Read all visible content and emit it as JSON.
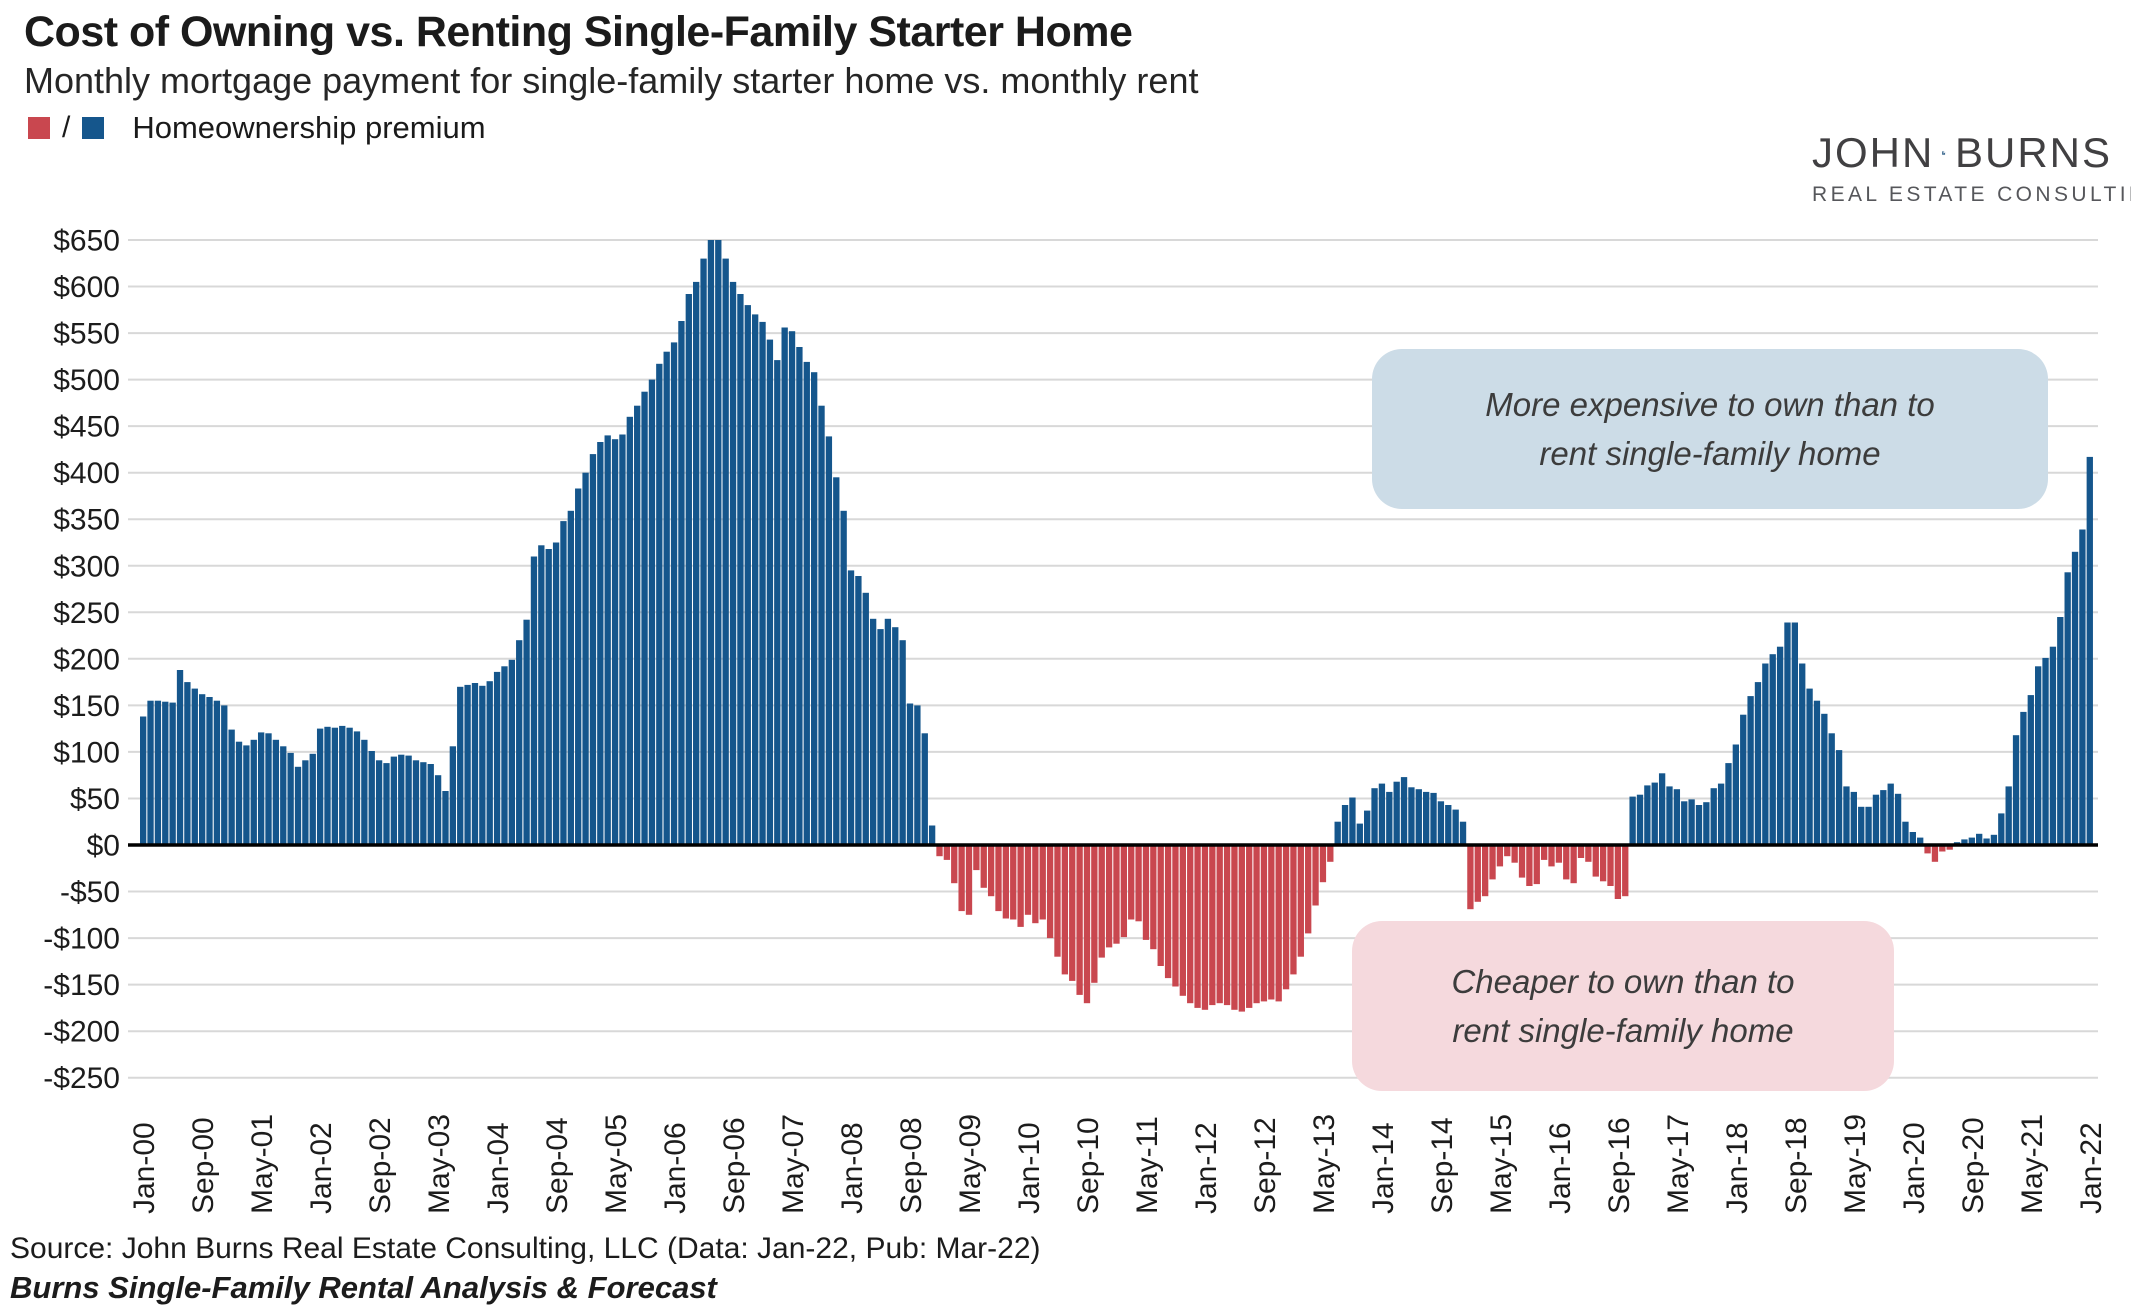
{
  "header": {
    "title": "Cost of Owning vs. Renting Single-Family Starter Home",
    "subtitle": "Monthly mortgage payment for single-family starter home vs. monthly rent"
  },
  "legend": {
    "slash": "/",
    "label": "Homeownership premium"
  },
  "logo": {
    "name_left": "JOHN",
    "name_right": "BURNS",
    "tagline": "REAL ESTATE CONSULTING"
  },
  "annotations": {
    "positive": {
      "line1": "More expensive to own than to",
      "line2": "rent single-family home"
    },
    "negative": {
      "line1": "Cheaper to own than to",
      "line2": "rent single-family home"
    }
  },
  "footer": {
    "source": "Source: John Burns Real Estate Consulting, LLC (Data: Jan-22, Pub: Mar-22)",
    "publication": "Burns Single-Family Rental Analysis & Forecast"
  },
  "colors": {
    "positive_bar": "#15568c",
    "negative_bar": "#c9474f",
    "grid": "#d8d8d8",
    "zero_line": "#000000",
    "axis_text": "#1c1c1c",
    "annotation_positive_bg": "#ccdce7",
    "annotation_negative_bg": "#f5d9dd",
    "logo_dark": "#2c5d86",
    "logo_light": "#aec5d8"
  },
  "chart_data": {
    "type": "bar",
    "title": "Cost of Owning vs. Renting Single-Family Starter Home",
    "xlabel": "",
    "ylabel": "",
    "x_start": "Jan-2000",
    "x_end": "Jan-2022",
    "x_frequency": "monthly",
    "ylim": [
      -250,
      650
    ],
    "y_tick_step": 50,
    "grid": true,
    "legend_position": "top-left",
    "y_tick_labels": [
      "$650",
      "$600",
      "$550",
      "$500",
      "$450",
      "$400",
      "$350",
      "$300",
      "$250",
      "$200",
      "$150",
      "$100",
      "$50",
      "$0",
      "-$50",
      "-$100",
      "-$150",
      "-$200",
      "-$250"
    ],
    "x_tick_every": 8,
    "x_tick_labels": [
      "Jan-00",
      "Sep-00",
      "May-01",
      "Jan-02",
      "Sep-02",
      "May-03",
      "Jan-04",
      "Sep-04",
      "May-05",
      "Jan-06",
      "Sep-06",
      "May-07",
      "Jan-08",
      "Sep-08",
      "May-09",
      "Jan-10",
      "Sep-10",
      "May-11",
      "Jan-12",
      "Sep-12",
      "May-13",
      "Jan-14",
      "Sep-14",
      "May-15",
      "Jan-16",
      "Sep-16",
      "May-17",
      "Jan-18",
      "Sep-18",
      "May-19",
      "Jan-20",
      "Sep-20",
      "May-21",
      "Jan-22"
    ],
    "series": [
      {
        "name": "Homeownership premium",
        "values": [
          138,
          155,
          155,
          154,
          153,
          188,
          175,
          168,
          162,
          159,
          155,
          150,
          124,
          111,
          107,
          113,
          121,
          120,
          113,
          106,
          99,
          84,
          91,
          98,
          125,
          127,
          126,
          128,
          126,
          122,
          113,
          101,
          91,
          88,
          95,
          97,
          96,
          91,
          89,
          87,
          75,
          58,
          106,
          170,
          172,
          174,
          171,
          176,
          186,
          192,
          199,
          220,
          242,
          310,
          322,
          318,
          325,
          348,
          359,
          383,
          400,
          420,
          433,
          440,
          436,
          441,
          460,
          472,
          487,
          500,
          517,
          530,
          540,
          563,
          592,
          605,
          630,
          650,
          650,
          630,
          605,
          592,
          580,
          570,
          562,
          543,
          521,
          556,
          552,
          535,
          519,
          508,
          472,
          439,
          395,
          359,
          295,
          289,
          271,
          243,
          232,
          243,
          234,
          220,
          152,
          150,
          120,
          21,
          -12,
          -16,
          -41,
          -71,
          -75,
          -27,
          -46,
          -55,
          -71,
          -79,
          -80,
          -88,
          -75,
          -84,
          -80,
          -100,
          -120,
          -139,
          -146,
          -161,
          -170,
          -148,
          -121,
          -110,
          -106,
          -99,
          -80,
          -82,
          -102,
          -112,
          -130,
          -143,
          -152,
          -162,
          -170,
          -175,
          -177,
          -172,
          -170,
          -172,
          -177,
          -179,
          -175,
          -170,
          -168,
          -166,
          -168,
          -155,
          -139,
          -120,
          -95,
          -65,
          -40,
          -18,
          25,
          43,
          51,
          23,
          37,
          61,
          66,
          57,
          68,
          73,
          62,
          60,
          57,
          56,
          47,
          43,
          38,
          25,
          -69,
          -61,
          -55,
          -37,
          -23,
          -12,
          -19,
          -35,
          -44,
          -42,
          -16,
          -23,
          -19,
          -37,
          -41,
          -14,
          -18,
          -34,
          -39,
          -44,
          -58,
          -55,
          52,
          54,
          64,
          67,
          77,
          63,
          60,
          47,
          49,
          43,
          46,
          61,
          66,
          88,
          108,
          140,
          160,
          175,
          195,
          205,
          213,
          239,
          239,
          195,
          168,
          155,
          141,
          120,
          102,
          63,
          57,
          41,
          41,
          54,
          59,
          66,
          55,
          25,
          14,
          8,
          -9,
          -18,
          -7,
          -5,
          3,
          6,
          8,
          12,
          7,
          11,
          34,
          63,
          118,
          143,
          161,
          192,
          201,
          213,
          245,
          293,
          315,
          339,
          417
        ]
      }
    ]
  }
}
